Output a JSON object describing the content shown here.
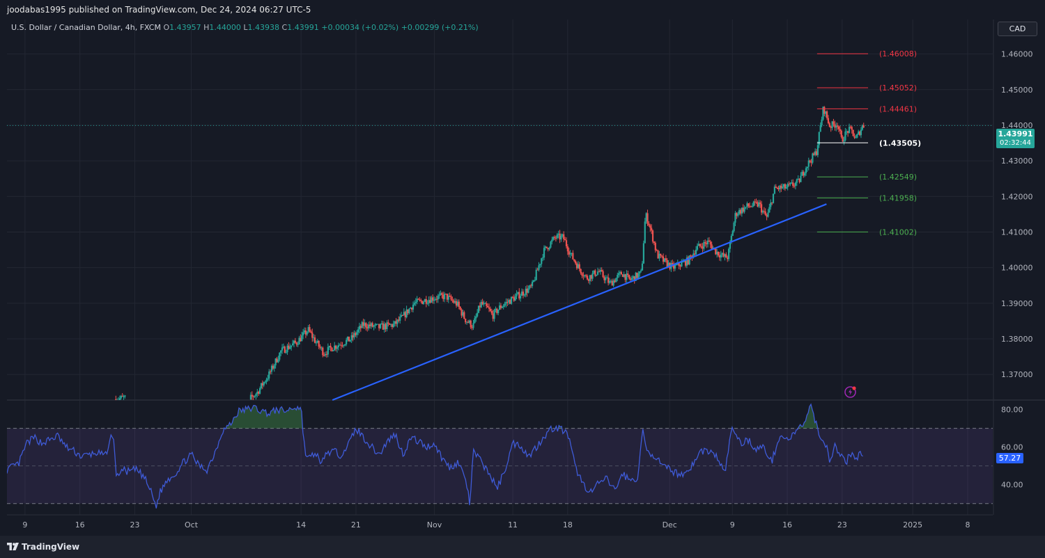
{
  "header": {
    "published": "joodabas1995 published on TradingView.com, Dec 24, 2024 06:27 UTC-5"
  },
  "legend": {
    "symbol": "U.S. Dollar / Canadian Dollar, 4h, FXCM",
    "o_label": "O",
    "o": "1.43957",
    "h_label": "H",
    "h": "1.44000",
    "l_label": "L",
    "l": "1.43938",
    "c_label": "C",
    "c": "1.43991",
    "change": "+0.00034 (+0.02%)",
    "change2": "+0.00299 (+0.21%)"
  },
  "currency_button": "CAD",
  "last_price": {
    "value": "1.43991",
    "countdown": "02:32:44"
  },
  "rsi_value": "57.27",
  "footer": {
    "brand": "TradingView"
  },
  "colors": {
    "up": "#26a69a",
    "down": "#ef5350",
    "trendline": "#2962ff",
    "rsi": "#3f5bd8",
    "resistance": "#f23645",
    "support": "#4caf50",
    "pivot": "#ffffff"
  },
  "chart_data": {
    "type": "candlestick",
    "price_axis": {
      "ticks": [
        "1.37000",
        "1.38000",
        "1.39000",
        "1.40000",
        "1.41000",
        "1.42000",
        "1.43000",
        "1.44000",
        "1.45000",
        "1.46000"
      ],
      "range": [
        1.3628,
        1.4697
      ]
    },
    "x_axis": {
      "ticks": [
        {
          "label": "9",
          "value": 0.8
        },
        {
          "label": "16",
          "value": 7.8
        },
        {
          "label": "23",
          "value": 14.8
        },
        {
          "label": "Oct",
          "value": 22
        },
        {
          "label": "14",
          "value": 36
        },
        {
          "label": "21",
          "value": 43
        },
        {
          "label": "Nov",
          "value": 53
        },
        {
          "label": "11",
          "value": 63
        },
        {
          "label": "18",
          "value": 70
        },
        {
          "label": "Dec",
          "value": 83
        },
        {
          "label": "9",
          "value": 91
        },
        {
          "label": "16",
          "value": 98
        },
        {
          "label": "23",
          "value": 105
        },
        {
          "label": "2025",
          "value": 114
        },
        {
          "label": "8",
          "value": 121
        }
      ],
      "range": [
        -1.5,
        124.2
      ]
    },
    "rsi_axis": {
      "ticks": [
        "40.00",
        "60.00",
        "80.00"
      ],
      "upper": 70,
      "lower": 30,
      "mid": 50,
      "range": [
        24,
        85
      ]
    },
    "levels": [
      {
        "label": "(1.46008)",
        "value": 1.46008,
        "kind": "resistance"
      },
      {
        "label": "(1.45052)",
        "value": 1.45052,
        "kind": "resistance"
      },
      {
        "label": "(1.44461)",
        "value": 1.44461,
        "kind": "resistance"
      },
      {
        "label": "(1.43505)",
        "value": 1.43505,
        "kind": "pivot"
      },
      {
        "label": "(1.42549)",
        "value": 1.42549,
        "kind": "support"
      },
      {
        "label": "(1.41958)",
        "value": 1.41958,
        "kind": "support"
      },
      {
        "label": "(1.41002)",
        "value": 1.41002,
        "kind": "support"
      }
    ],
    "levels_x": [
      101.8,
      108.3
    ],
    "trendline": {
      "x1": 40.0,
      "y1": 1.3628,
      "x2": 103.0,
      "y2": 1.41785
    },
    "current_price": 1.43991,
    "price_anchors": [
      [
        12.3,
        1.363
      ],
      [
        13.5,
        1.3634
      ],
      [
        29.5,
        1.363
      ],
      [
        30.5,
        1.365
      ],
      [
        32.0,
        1.37
      ],
      [
        33.5,
        1.3765
      ],
      [
        35.5,
        1.379
      ],
      [
        37.0,
        1.3825
      ],
      [
        38.0,
        1.379
      ],
      [
        39.0,
        1.376
      ],
      [
        40.0,
        1.3775
      ],
      [
        42.5,
        1.38
      ],
      [
        44.0,
        1.384
      ],
      [
        46.0,
        1.3832
      ],
      [
        48.0,
        1.384
      ],
      [
        49.0,
        1.386
      ],
      [
        50.5,
        1.39
      ],
      [
        53.0,
        1.3915
      ],
      [
        54.5,
        1.392
      ],
      [
        56.0,
        1.3897
      ],
      [
        57.0,
        1.3855
      ],
      [
        58.0,
        1.3835
      ],
      [
        59.0,
        1.39
      ],
      [
        60.0,
        1.3882
      ],
      [
        60.5,
        1.3865
      ],
      [
        61.5,
        1.389
      ],
      [
        62.5,
        1.3905
      ],
      [
        64.0,
        1.3925
      ],
      [
        65.5,
        1.3945
      ],
      [
        67.0,
        1.4045
      ],
      [
        68.5,
        1.4085
      ],
      [
        69.5,
        1.4085
      ],
      [
        70.5,
        1.4035
      ],
      [
        71.5,
        1.4
      ],
      [
        72.5,
        1.397
      ],
      [
        74.0,
        1.399
      ],
      [
        75.5,
        1.3955
      ],
      [
        77.0,
        1.3985
      ],
      [
        78.0,
        1.3965
      ],
      [
        79.5,
        1.3985
      ],
      [
        80.0,
        1.415
      ],
      [
        80.5,
        1.412
      ],
      [
        81.5,
        1.4035
      ],
      [
        82.5,
        1.4015
      ],
      [
        83.5,
        1.4
      ],
      [
        85.5,
        1.402
      ],
      [
        86.5,
        1.4055
      ],
      [
        88.0,
        1.4072
      ],
      [
        89.0,
        1.4045
      ],
      [
        90.0,
        1.403
      ],
      [
        90.5,
        1.403
      ],
      [
        91.5,
        1.4152
      ],
      [
        93.0,
        1.4172
      ],
      [
        94.5,
        1.4178
      ],
      [
        95.0,
        1.4155
      ],
      [
        95.5,
        1.414
      ],
      [
        96.5,
        1.4222
      ],
      [
        98.0,
        1.4225
      ],
      [
        99.5,
        1.424
      ],
      [
        100.5,
        1.4285
      ],
      [
        101.8,
        1.4325
      ],
      [
        102.7,
        1.445
      ],
      [
        103.5,
        1.4398
      ],
      [
        104.5,
        1.4405
      ],
      [
        105.0,
        1.4357
      ],
      [
        105.8,
        1.4385
      ],
      [
        106.3,
        1.4385
      ],
      [
        106.8,
        1.436
      ],
      [
        107.7,
        1.4399
      ]
    ],
    "rsi_anchors": [
      [
        -1.5,
        48
      ],
      [
        0,
        51
      ],
      [
        1,
        62
      ],
      [
        2,
        65
      ],
      [
        3,
        62
      ],
      [
        4,
        64
      ],
      [
        5,
        66
      ],
      [
        6,
        60
      ],
      [
        7,
        58
      ],
      [
        8,
        55
      ],
      [
        9,
        56
      ],
      [
        10,
        57
      ],
      [
        11,
        55
      ],
      [
        12,
        68
      ],
      [
        12.5,
        43
      ],
      [
        13,
        48
      ],
      [
        14,
        47
      ],
      [
        15,
        48
      ],
      [
        16,
        44
      ],
      [
        17,
        35
      ],
      [
        17.5,
        28
      ],
      [
        18,
        36
      ],
      [
        19,
        43
      ],
      [
        20,
        46
      ],
      [
        21,
        52
      ],
      [
        22,
        56
      ],
      [
        23,
        50
      ],
      [
        24,
        48
      ],
      [
        25,
        57
      ],
      [
        26,
        69
      ],
      [
        27,
        72
      ],
      [
        28,
        79
      ],
      [
        29,
        80
      ],
      [
        30,
        81
      ],
      [
        31,
        79
      ],
      [
        32,
        78
      ],
      [
        33,
        80
      ],
      [
        34,
        79
      ],
      [
        35,
        81
      ],
      [
        36,
        81
      ],
      [
        36.5,
        57
      ],
      [
        37,
        54
      ],
      [
        38,
        57
      ],
      [
        38.5,
        49
      ],
      [
        39,
        56
      ],
      [
        40,
        58
      ],
      [
        41,
        56
      ],
      [
        42,
        61
      ],
      [
        43,
        70
      ],
      [
        44,
        65
      ],
      [
        45,
        60
      ],
      [
        46,
        56
      ],
      [
        47,
        63
      ],
      [
        48,
        67
      ],
      [
        49,
        56
      ],
      [
        50,
        65
      ],
      [
        51,
        63
      ],
      [
        52,
        60
      ],
      [
        53,
        62
      ],
      [
        54,
        54
      ],
      [
        55,
        49
      ],
      [
        56,
        52
      ],
      [
        57,
        43
      ],
      [
        57.5,
        30
      ],
      [
        58,
        58
      ],
      [
        59,
        52
      ],
      [
        60,
        46
      ],
      [
        61,
        38
      ],
      [
        62,
        48
      ],
      [
        63,
        62
      ],
      [
        64,
        61
      ],
      [
        65,
        55
      ],
      [
        66,
        60
      ],
      [
        67,
        66
      ],
      [
        68,
        70
      ],
      [
        69,
        70
      ],
      [
        70,
        67
      ],
      [
        71,
        49
      ],
      [
        72,
        40
      ],
      [
        73,
        36
      ],
      [
        74,
        41
      ],
      [
        75,
        43
      ],
      [
        76,
        37
      ],
      [
        77,
        46
      ],
      [
        78,
        42
      ],
      [
        79,
        44
      ],
      [
        79.5,
        70
      ],
      [
        80,
        58
      ],
      [
        81,
        56
      ],
      [
        82,
        50
      ],
      [
        83,
        48
      ],
      [
        84,
        46
      ],
      [
        85,
        46
      ],
      [
        86,
        51
      ],
      [
        87,
        58
      ],
      [
        88,
        58
      ],
      [
        89,
        55
      ],
      [
        90,
        46
      ],
      [
        91,
        71
      ],
      [
        92,
        62
      ],
      [
        93,
        64
      ],
      [
        94,
        59
      ],
      [
        95,
        60
      ],
      [
        96,
        52
      ],
      [
        97,
        66
      ],
      [
        98,
        64
      ],
      [
        99,
        67
      ],
      [
        99.5,
        70
      ],
      [
        100,
        72
      ],
      [
        101,
        81
      ],
      [
        101.5,
        75
      ],
      [
        102,
        68
      ],
      [
        103,
        60
      ],
      [
        103.5,
        52
      ],
      [
        104,
        62
      ],
      [
        104.5,
        56
      ],
      [
        105,
        55
      ],
      [
        105.5,
        52
      ],
      [
        106,
        56
      ],
      [
        107,
        55
      ],
      [
        107.7,
        57
      ]
    ]
  }
}
